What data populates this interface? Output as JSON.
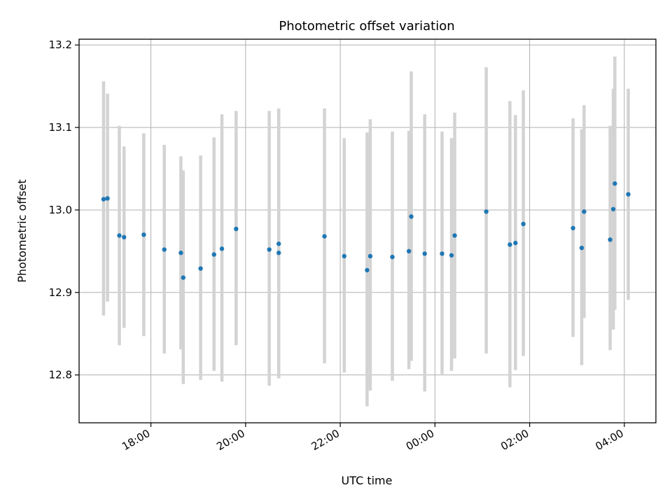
{
  "chart_data": {
    "type": "scatter",
    "title": "Photometric offset variation",
    "xlabel": "UTC time",
    "ylabel": "Photometric offset",
    "x_axis_type": "time",
    "x_ticks": [
      "18:00",
      "20:00",
      "22:00",
      "00:00",
      "02:00",
      "04:00"
    ],
    "y_ticks": [
      "12.8",
      "12.9",
      "13.0",
      "13.1",
      "13.2"
    ],
    "xlim": [
      "16:29",
      "04:40"
    ],
    "ylim": [
      12.742,
      13.207
    ],
    "grid": true,
    "colors": {
      "marker": "#1f77b4",
      "errorbar": "#d3d3d3",
      "grid": "#b0b0b0"
    },
    "series": [
      {
        "points": [
          {
            "time": "17:00",
            "value": 13.013,
            "low": 12.872,
            "high": 13.156
          },
          {
            "time": "17:05",
            "value": 13.014,
            "low": 12.889,
            "high": 13.141
          },
          {
            "time": "17:20",
            "value": 12.969,
            "low": 12.836,
            "high": 13.102
          },
          {
            "time": "17:26",
            "value": 12.967,
            "low": 12.857,
            "high": 13.077
          },
          {
            "time": "17:51",
            "value": 12.97,
            "low": 12.847,
            "high": 13.093
          },
          {
            "time": "18:17",
            "value": 12.952,
            "low": 12.826,
            "high": 13.079
          },
          {
            "time": "18:38",
            "value": 12.948,
            "low": 12.831,
            "high": 13.065
          },
          {
            "time": "18:41",
            "value": 12.918,
            "low": 12.789,
            "high": 13.048
          },
          {
            "time": "19:03",
            "value": 12.929,
            "low": 12.794,
            "high": 13.066
          },
          {
            "time": "19:20",
            "value": 12.946,
            "low": 12.805,
            "high": 13.088
          },
          {
            "time": "19:30",
            "value": 12.953,
            "low": 12.792,
            "high": 13.116
          },
          {
            "time": "19:48",
            "value": 12.977,
            "low": 12.836,
            "high": 13.12
          },
          {
            "time": "20:30",
            "value": 12.952,
            "low": 12.787,
            "high": 13.12
          },
          {
            "time": "20:42",
            "value": 12.959,
            "low": 12.796,
            "high": 13.123
          },
          {
            "time": "20:42",
            "value": 12.948,
            "low": 12.796,
            "high": 13.123
          },
          {
            "time": "21:40",
            "value": 12.968,
            "low": 12.814,
            "high": 13.123
          },
          {
            "time": "22:05",
            "value": 12.944,
            "low": 12.803,
            "high": 13.087
          },
          {
            "time": "22:34",
            "value": 12.927,
            "low": 12.762,
            "high": 13.094
          },
          {
            "time": "22:38",
            "value": 12.944,
            "low": 12.781,
            "high": 13.11
          },
          {
            "time": "23:06",
            "value": 12.943,
            "low": 12.793,
            "high": 13.095
          },
          {
            "time": "23:27",
            "value": 12.95,
            "low": 12.807,
            "high": 13.096
          },
          {
            "time": "23:30",
            "value": 12.992,
            "low": 12.817,
            "high": 13.168
          },
          {
            "time": "23:47",
            "value": 12.947,
            "low": 12.78,
            "high": 13.116
          },
          {
            "time": "00:09",
            "value": 12.947,
            "low": 12.801,
            "high": 13.095
          },
          {
            "time": "00:21",
            "value": 12.945,
            "low": 12.805,
            "high": 13.087
          },
          {
            "time": "00:25",
            "value": 12.969,
            "low": 12.82,
            "high": 13.118
          },
          {
            "time": "01:05",
            "value": 12.998,
            "low": 12.826,
            "high": 13.173
          },
          {
            "time": "01:35",
            "value": 12.958,
            "low": 12.785,
            "high": 13.132
          },
          {
            "time": "01:42",
            "value": 12.96,
            "low": 12.806,
            "high": 13.115
          },
          {
            "time": "01:52",
            "value": 12.983,
            "low": 12.823,
            "high": 13.145
          },
          {
            "time": "02:55",
            "value": 12.978,
            "low": 12.846,
            "high": 13.111
          },
          {
            "time": "03:06",
            "value": 12.954,
            "low": 12.812,
            "high": 13.098
          },
          {
            "time": "03:09",
            "value": 12.998,
            "low": 12.869,
            "high": 13.127
          },
          {
            "time": "03:42",
            "value": 12.964,
            "low": 12.83,
            "high": 13.102
          },
          {
            "time": "03:46",
            "value": 13.001,
            "low": 12.855,
            "high": 13.147
          },
          {
            "time": "03:48",
            "value": 13.032,
            "low": 12.879,
            "high": 13.186
          },
          {
            "time": "04:05",
            "value": 13.019,
            "low": 12.891,
            "high": 13.147
          }
        ]
      }
    ]
  }
}
